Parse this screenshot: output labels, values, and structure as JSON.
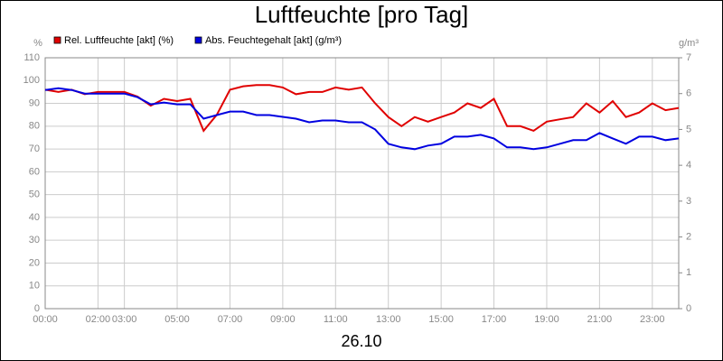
{
  "chart_data": {
    "type": "line",
    "title": "Luftfeuchte [pro Tag]",
    "xlabel": "26.10",
    "ylabel": "%",
    "y2label": "g/m³",
    "x": [
      0,
      0.5,
      1,
      1.5,
      2,
      2.5,
      3,
      3.5,
      4,
      4.5,
      5,
      5.5,
      6,
      6.5,
      7,
      7.5,
      8,
      8.5,
      9,
      9.5,
      10,
      10.5,
      11,
      11.5,
      12,
      12.5,
      13,
      13.5,
      14,
      14.5,
      15,
      15.5,
      16,
      16.5,
      17,
      17.5,
      18,
      18.5,
      19,
      19.5,
      20,
      20.5,
      21,
      21.5,
      22,
      22.5,
      23,
      23.5,
      24
    ],
    "series": [
      {
        "name": "Rel. Luftfeuchte [akt] (%)",
        "color": "#e00000",
        "axis": "y",
        "values": [
          96,
          95,
          96,
          94,
          95,
          95,
          95,
          93,
          89,
          92,
          91,
          92,
          78,
          85,
          96,
          97.5,
          98,
          98,
          97,
          94,
          95,
          95,
          97,
          96,
          97,
          90,
          84,
          80,
          84,
          82,
          84,
          86,
          90,
          88,
          92,
          80,
          80,
          78,
          82,
          83,
          84,
          90,
          86,
          91,
          84,
          86,
          90,
          87,
          88
        ]
      },
      {
        "name": "Abs. Feuchtegehalt [akt] (g/m³)",
        "color": "#0000e0",
        "axis": "y2",
        "values": [
          6.1,
          6.15,
          6.1,
          6.0,
          6.0,
          6.0,
          6.0,
          5.9,
          5.7,
          5.75,
          5.7,
          5.7,
          5.3,
          5.4,
          5.5,
          5.5,
          5.4,
          5.4,
          5.35,
          5.3,
          5.2,
          5.25,
          5.25,
          5.2,
          5.2,
          5.0,
          4.6,
          4.5,
          4.45,
          4.55,
          4.6,
          4.8,
          4.8,
          4.85,
          4.75,
          4.5,
          4.5,
          4.45,
          4.5,
          4.6,
          4.7,
          4.7,
          4.9,
          4.75,
          4.6,
          4.8,
          4.8,
          4.7,
          4.75
        ]
      }
    ],
    "xlim": [
      0,
      24
    ],
    "xticks": [
      {
        "value": 0,
        "label": "00:00"
      },
      {
        "value": 2,
        "label": "02:00"
      },
      {
        "value": 3,
        "label": "03:00"
      },
      {
        "value": 5,
        "label": "05:00"
      },
      {
        "value": 7,
        "label": "07:00"
      },
      {
        "value": 9,
        "label": "09:00"
      },
      {
        "value": 11,
        "label": "11:00"
      },
      {
        "value": 13,
        "label": "13:00"
      },
      {
        "value": 15,
        "label": "15:00"
      },
      {
        "value": 17,
        "label": "17:00"
      },
      {
        "value": 19,
        "label": "19:00"
      },
      {
        "value": 21,
        "label": "21:00"
      },
      {
        "value": 23,
        "label": "23:00"
      }
    ],
    "ylim": [
      0,
      110
    ],
    "yticks": [
      0,
      10,
      20,
      30,
      40,
      50,
      60,
      70,
      80,
      90,
      100,
      110
    ],
    "y2lim": [
      0,
      7
    ],
    "y2ticks": [
      0,
      1,
      2,
      3,
      4,
      5,
      6,
      7
    ],
    "grid": true
  }
}
